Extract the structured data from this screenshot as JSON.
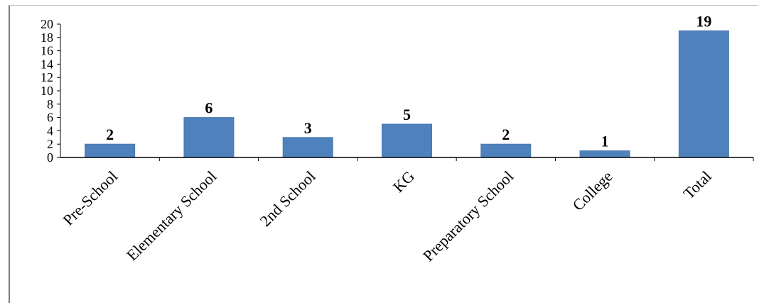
{
  "chart_data": {
    "type": "bar",
    "categories": [
      "Pre-School",
      "Elementary School",
      "2nd School",
      "KG",
      "Preparatory School",
      "College",
      "Total"
    ],
    "values": [
      2,
      6,
      3,
      5,
      2,
      1,
      19
    ],
    "title": "",
    "xlabel": "",
    "ylabel": "",
    "ylim": [
      0,
      20
    ],
    "yticks": [
      0,
      2,
      4,
      6,
      8,
      10,
      12,
      14,
      16,
      18,
      20
    ],
    "grid": false,
    "legend": "none",
    "data_labels": true,
    "colors": {
      "bar": "#4f81bd",
      "bar_edge": "#4a7ab0",
      "axis": "#000000",
      "frame": "#7f7f7f"
    }
  }
}
